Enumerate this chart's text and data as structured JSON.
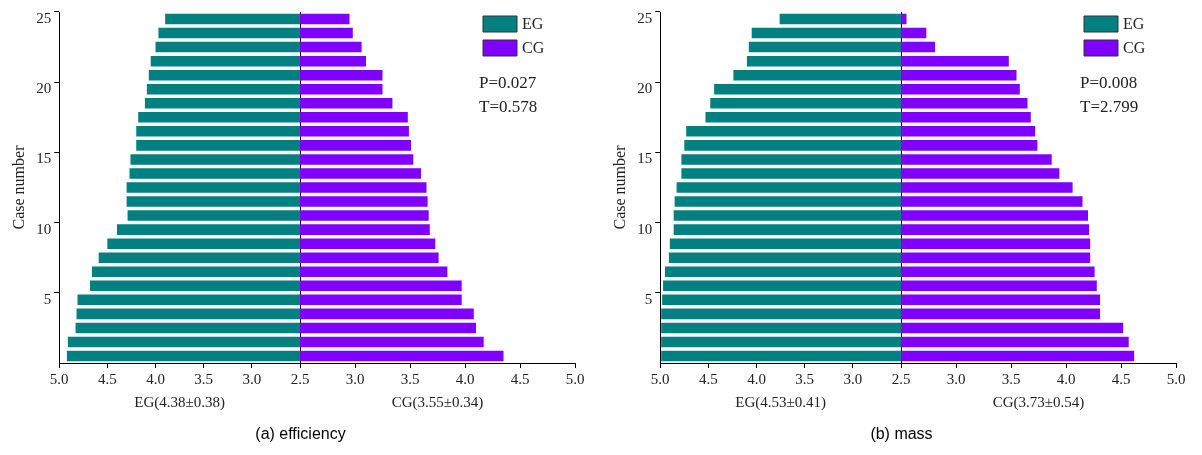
{
  "chart_data": [
    {
      "type": "bar",
      "orientation": "horizontal",
      "title": "(a) efficiency",
      "ylabel": "Case number",
      "xlabel": "EG(4.38±0.38)",
      "categories": [
        "25",
        null,
        null,
        null,
        null,
        "20",
        null,
        null,
        null,
        null,
        "15",
        null,
        null,
        null,
        null,
        "10",
        null,
        null,
        null,
        null,
        "5",
        null,
        null,
        null,
        null
      ],
      "series": [
        {
          "name": "EG",
          "color": "#008080",
          "values": [
            3.9,
            3.97,
            4.0,
            4.05,
            4.07,
            4.09,
            4.11,
            4.18,
            4.2,
            4.2,
            4.26,
            4.27,
            4.3,
            4.3,
            4.29,
            4.4,
            4.5,
            4.59,
            4.66,
            4.68,
            4.81,
            4.82,
            4.83,
            4.91,
            4.92
          ]
        }
      ],
      "xlim": [
        5.0,
        2.5
      ],
      "xticks": [
        {
          "value": 5,
          "label": "5.0"
        },
        4.5,
        {
          "value": 4,
          "label": "4.0"
        },
        3.5,
        {
          "value": 3,
          "label": "3.0"
        },
        2.5
      ],
      "legend": "top right"
    },
    {
      "type": "bar",
      "orientation": "horizontal",
      "xlabel": "CG(3.55±0.34)",
      "tick_labels": "x",
      "categories": [
        "25",
        null,
        null,
        null,
        null,
        "20",
        null,
        null,
        null,
        null,
        "15",
        null,
        null,
        null,
        null,
        "10",
        null,
        null,
        null,
        null,
        "5",
        null,
        null,
        null,
        null
      ],
      "series": [
        {
          "name": "CG",
          "color": "#8000ff",
          "values": [
            2.95,
            2.98,
            3.06,
            3.1,
            3.25,
            3.25,
            3.34,
            3.48,
            3.49,
            3.51,
            3.53,
            3.6,
            3.65,
            3.66,
            3.67,
            3.68,
            3.73,
            3.76,
            3.84,
            3.97,
            3.97,
            4.08,
            4.1,
            4.17,
            4.35
          ]
        }
      ],
      "xlim": [
        2.5,
        5.0
      ],
      "xticks": [
        {
          "value": 2.5,
          "label": null
        },
        {
          "value": 3,
          "label": "3.0"
        },
        3.5,
        {
          "value": 4,
          "label": "4.0"
        },
        4.5,
        {
          "value": 5,
          "label": "5.0"
        }
      ],
      "legend": "top right",
      "annotations": [
        "P=0.027",
        "T=0.578"
      ]
    },
    {
      "type": "bar",
      "orientation": "horizontal",
      "title": "(b) mass",
      "ylabel": "Case number",
      "xlabel": "EG(4.53±0.41)",
      "categories": [
        "25",
        null,
        null,
        null,
        null,
        "20",
        null,
        null,
        null,
        null,
        "15",
        null,
        null,
        null,
        null,
        "10",
        null,
        null,
        null,
        null,
        "5",
        null,
        null,
        null,
        null
      ],
      "series": [
        {
          "name": "EG",
          "color": "#008080",
          "values": [
            3.76,
            4.05,
            4.08,
            4.1,
            4.24,
            4.44,
            4.48,
            4.53,
            4.73,
            4.75,
            4.78,
            4.78,
            4.83,
            4.85,
            4.86,
            4.86,
            4.9,
            4.91,
            4.95,
            4.97,
            4.98,
            4.99,
            4.99,
            4.99,
            4.99
          ]
        }
      ],
      "xlim": [
        5.0,
        2.5
      ],
      "xticks": [
        {
          "value": 5,
          "label": "5.0"
        },
        4.5,
        {
          "value": 4,
          "label": "4.0"
        },
        3.5,
        {
          "value": 3,
          "label": "3.0"
        },
        2.5
      ],
      "legend": "top right"
    },
    {
      "type": "bar",
      "orientation": "horizontal",
      "xlabel": "CG(3.73±0.54)",
      "tick_labels": "x",
      "categories": [
        "25",
        null,
        null,
        null,
        null,
        "20",
        null,
        null,
        null,
        null,
        "15",
        null,
        null,
        null,
        null,
        "10",
        null,
        null,
        null,
        null,
        "5",
        null,
        null,
        null,
        null
      ],
      "series": [
        {
          "name": "CG",
          "color": "#8000ff",
          "values": [
            2.55,
            2.73,
            2.81,
            3.48,
            3.55,
            3.58,
            3.65,
            3.68,
            3.72,
            3.74,
            3.87,
            3.94,
            4.06,
            4.15,
            4.2,
            4.21,
            4.22,
            4.22,
            4.26,
            4.28,
            4.31,
            4.31,
            4.52,
            4.57,
            4.62
          ]
        }
      ],
      "xlim": [
        2.5,
        5.0
      ],
      "xticks": [
        {
          "value": 2.5,
          "label": null
        },
        {
          "value": 3,
          "label": "3.0"
        },
        3.5,
        {
          "value": 4,
          "label": "4.0"
        },
        4.5,
        {
          "value": 5,
          "label": "5.0"
        }
      ],
      "legend": "top right",
      "annotations": [
        "P=0.008",
        "T=2.799"
      ]
    }
  ]
}
